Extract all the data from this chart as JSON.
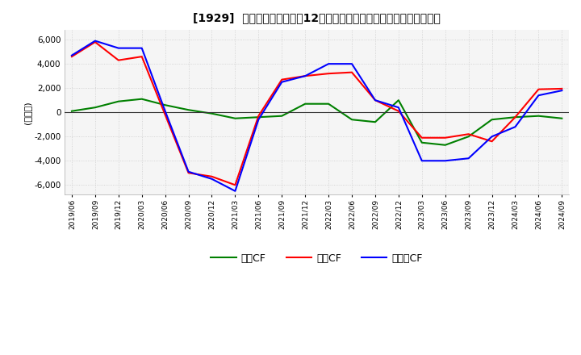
{
  "title": "[1929]  キャッシュフローの12か月移動合計の対前年同期増減額の推移",
  "ylabel": "(百万円)",
  "ylim": [
    -6800,
    6800
  ],
  "yticks": [
    -6000,
    -4000,
    -2000,
    0,
    2000,
    4000,
    6000
  ],
  "legend_labels": [
    "営業CF",
    "投資CF",
    "フリーCF"
  ],
  "legend_colors": [
    "#ff0000",
    "#008000",
    "#0000ff"
  ],
  "x_labels": [
    "2019/06",
    "2019/09",
    "2019/12",
    "2020/03",
    "2020/06",
    "2020/09",
    "2020/12",
    "2021/03",
    "2021/06",
    "2021/09",
    "2021/12",
    "2022/03",
    "2022/06",
    "2022/09",
    "2022/12",
    "2023/03",
    "2023/06",
    "2023/09",
    "2023/12",
    "2024/03",
    "2024/06",
    "2024/09"
  ],
  "operating_cf": [
    4600,
    5800,
    4300,
    4600,
    -200,
    -5000,
    -5300,
    -6000,
    -300,
    2700,
    3000,
    3200,
    3300,
    1000,
    100,
    -2100,
    -2100,
    -1800,
    -2400,
    -400,
    1900,
    1950
  ],
  "investing_cf": [
    100,
    400,
    900,
    1100,
    600,
    200,
    -100,
    -500,
    -400,
    -300,
    700,
    700,
    -600,
    -800,
    1000,
    -2500,
    -2700,
    -2000,
    -600,
    -400,
    -300,
    -500
  ],
  "free_cf": [
    4700,
    5900,
    5300,
    5300,
    100,
    -4900,
    -5500,
    -6500,
    -600,
    2500,
    3000,
    4000,
    4000,
    1000,
    400,
    -4000,
    -4000,
    -3800,
    -2000,
    -1200,
    1400,
    1800
  ],
  "background_color": "#ffffff",
  "plot_bg_color": "#f5f5f5",
  "grid_color": "#cccccc"
}
